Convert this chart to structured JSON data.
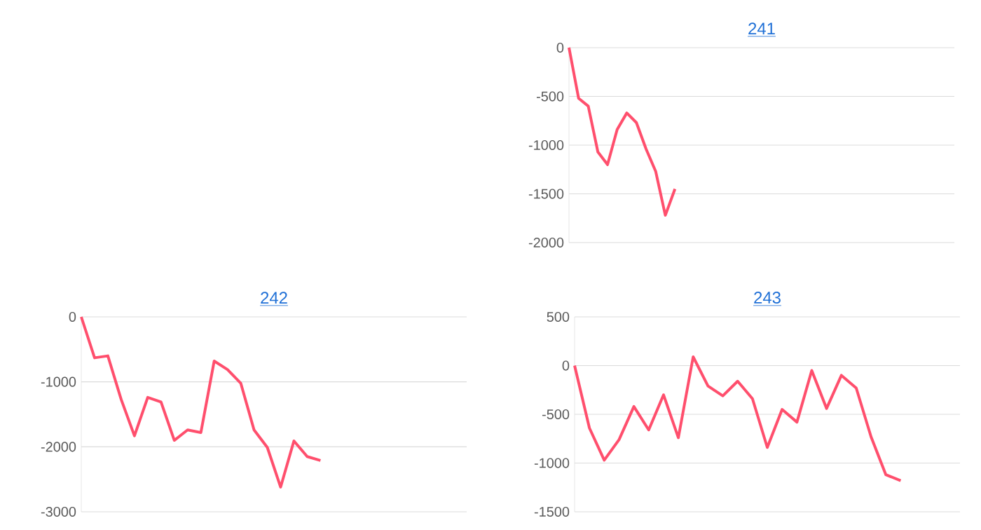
{
  "chart_data": [
    {
      "type": "line",
      "title": "241",
      "categories": [
        null,
        null,
        null,
        null,
        null,
        null,
        null,
        null,
        null,
        null,
        null,
        null,
        null,
        null,
        null,
        null,
        null,
        null,
        null,
        null,
        null,
        null,
        null,
        null,
        null,
        null,
        null,
        null,
        null,
        null,
        null,
        null,
        null,
        null,
        null,
        null,
        null,
        null,
        null,
        null,
        null
      ],
      "values": [
        0,
        -520,
        -600,
        -1070,
        -1200,
        -840,
        -670,
        -770,
        -1040,
        -1270,
        -1720,
        -1450,
        null,
        null,
        null,
        null,
        null,
        null,
        null,
        null,
        null,
        null,
        null,
        null,
        null,
        null,
        null,
        null,
        null,
        null,
        null,
        null,
        null,
        null,
        null,
        null,
        null,
        null,
        null,
        null,
        null
      ],
      "color": "#ff4f6d",
      "ylim": [
        -2000,
        0
      ],
      "yticks": [
        -2000,
        -1500,
        -1000,
        -500,
        0
      ],
      "grid": "y",
      "tick_labels": "y"
    },
    {
      "type": "line",
      "title": "242",
      "categories": [
        null,
        null,
        null,
        null,
        null,
        null,
        null,
        null,
        null,
        null,
        null,
        null,
        null,
        null,
        null,
        null,
        null,
        null,
        null,
        null,
        null,
        null,
        null,
        null,
        null,
        null,
        null,
        null,
        null,
        null
      ],
      "values": [
        0,
        -630,
        -600,
        -1270,
        -1830,
        -1240,
        -1310,
        -1900,
        -1740,
        -1780,
        -680,
        -810,
        -1020,
        -1740,
        -2010,
        -2620,
        -1910,
        -2150,
        -2210,
        null,
        null,
        null,
        null,
        null,
        null,
        null,
        null,
        null,
        null,
        null
      ],
      "color": "#ff4f6d",
      "ylim": [
        -3000,
        0
      ],
      "yticks": [
        -3000,
        -2000,
        -1000,
        0
      ],
      "grid": "y",
      "tick_labels": "y"
    },
    {
      "type": "line",
      "title": "243",
      "categories": [
        null,
        null,
        null,
        null,
        null,
        null,
        null,
        null,
        null,
        null,
        null,
        null,
        null,
        null,
        null,
        null,
        null,
        null,
        null,
        null,
        null,
        null,
        null,
        null,
        null,
        null,
        null
      ],
      "values": [
        0,
        -640,
        -970,
        -760,
        -420,
        -660,
        -300,
        -740,
        90,
        -210,
        -310,
        -160,
        -340,
        -840,
        -450,
        -580,
        -50,
        -440,
        -100,
        -230,
        -730,
        -1120,
        -1180,
        null,
        null,
        null,
        null
      ],
      "color": "#ff4f6d",
      "ylim": [
        -1500,
        500
      ],
      "yticks": [
        -1500,
        -1000,
        -500,
        0,
        500
      ],
      "grid": "y",
      "tick_labels": "y"
    }
  ]
}
